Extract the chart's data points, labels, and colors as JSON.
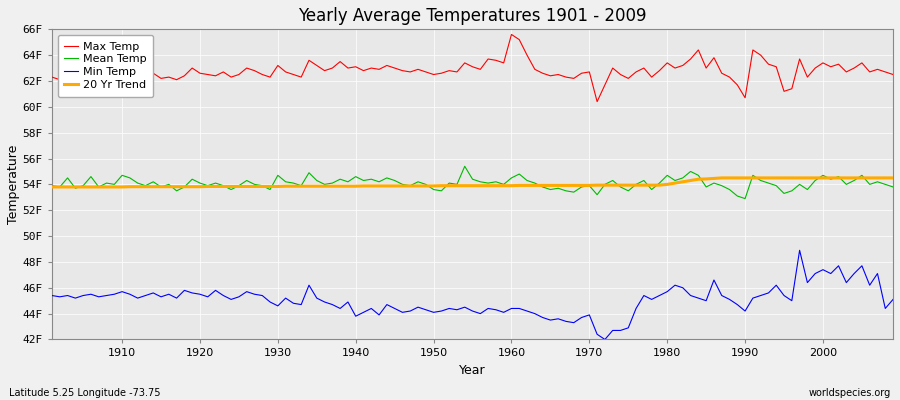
{
  "title": "Yearly Average Temperatures 1901 - 2009",
  "xlabel": "Year",
  "ylabel": "Temperature",
  "latitude_label": "Latitude 5.25 Longitude -73.75",
  "source_label": "worldspecies.org",
  "years": [
    1901,
    1902,
    1903,
    1904,
    1905,
    1906,
    1907,
    1908,
    1909,
    1910,
    1911,
    1912,
    1913,
    1914,
    1915,
    1916,
    1917,
    1918,
    1919,
    1920,
    1921,
    1922,
    1923,
    1924,
    1925,
    1926,
    1927,
    1928,
    1929,
    1930,
    1931,
    1932,
    1933,
    1934,
    1935,
    1936,
    1937,
    1938,
    1939,
    1940,
    1941,
    1942,
    1943,
    1944,
    1945,
    1946,
    1947,
    1948,
    1949,
    1950,
    1951,
    1952,
    1953,
    1954,
    1955,
    1956,
    1957,
    1958,
    1959,
    1960,
    1961,
    1962,
    1963,
    1964,
    1965,
    1966,
    1967,
    1968,
    1969,
    1970,
    1971,
    1972,
    1973,
    1974,
    1975,
    1976,
    1977,
    1978,
    1979,
    1980,
    1981,
    1982,
    1983,
    1984,
    1985,
    1986,
    1987,
    1988,
    1989,
    1990,
    1991,
    1992,
    1993,
    1994,
    1995,
    1996,
    1997,
    1998,
    1999,
    2000,
    2001,
    2002,
    2003,
    2004,
    2005,
    2006,
    2007,
    2008,
    2009
  ],
  "max_temp": [
    62.3,
    62.1,
    63.5,
    62.0,
    62.3,
    62.8,
    62.2,
    62.5,
    62.4,
    63.6,
    62.8,
    62.5,
    62.3,
    62.6,
    62.2,
    62.3,
    62.1,
    62.4,
    63.0,
    62.6,
    62.5,
    62.4,
    62.7,
    62.3,
    62.5,
    63.0,
    62.8,
    62.5,
    62.3,
    63.2,
    62.7,
    62.5,
    62.3,
    63.6,
    63.2,
    62.8,
    63.0,
    63.5,
    63.0,
    63.1,
    62.8,
    63.0,
    62.9,
    63.2,
    63.0,
    62.8,
    62.7,
    62.9,
    62.7,
    62.5,
    62.6,
    62.8,
    62.7,
    63.4,
    63.1,
    62.9,
    63.7,
    63.6,
    63.4,
    65.6,
    65.2,
    64.0,
    62.9,
    62.6,
    62.4,
    62.5,
    62.3,
    62.2,
    62.6,
    62.7,
    60.4,
    61.7,
    63.0,
    62.5,
    62.2,
    62.7,
    63.0,
    62.3,
    62.8,
    63.4,
    63.0,
    63.2,
    63.7,
    64.4,
    63.0,
    63.8,
    62.6,
    62.3,
    61.7,
    60.7,
    64.4,
    64.0,
    63.3,
    63.1,
    61.2,
    61.4,
    63.7,
    62.3,
    63.0,
    63.4,
    63.1,
    63.3,
    62.7,
    63.0,
    63.4,
    62.7,
    62.9,
    62.7,
    62.5
  ],
  "mean_temp": [
    53.9,
    53.8,
    54.5,
    53.7,
    53.9,
    54.6,
    53.8,
    54.1,
    54.0,
    54.7,
    54.5,
    54.1,
    53.9,
    54.2,
    53.8,
    54.0,
    53.5,
    53.8,
    54.4,
    54.1,
    53.9,
    54.1,
    53.9,
    53.6,
    53.9,
    54.3,
    54.0,
    53.9,
    53.6,
    54.7,
    54.2,
    54.1,
    53.9,
    54.9,
    54.3,
    54.0,
    54.1,
    54.4,
    54.2,
    54.6,
    54.3,
    54.4,
    54.2,
    54.5,
    54.3,
    54.0,
    53.9,
    54.2,
    54.0,
    53.6,
    53.5,
    54.1,
    54.0,
    55.4,
    54.4,
    54.2,
    54.1,
    54.2,
    54.0,
    54.5,
    54.8,
    54.3,
    54.1,
    53.8,
    53.6,
    53.7,
    53.5,
    53.4,
    53.8,
    53.9,
    53.2,
    54.0,
    54.3,
    53.8,
    53.5,
    54.0,
    54.3,
    53.6,
    54.1,
    54.7,
    54.3,
    54.5,
    55.0,
    54.7,
    53.8,
    54.1,
    53.9,
    53.6,
    53.1,
    52.9,
    54.7,
    54.3,
    54.1,
    53.9,
    53.3,
    53.5,
    54.0,
    53.6,
    54.3,
    54.7,
    54.4,
    54.6,
    54.0,
    54.3,
    54.7,
    54.0,
    54.2,
    54.0,
    53.8
  ],
  "min_temp": [
    45.4,
    45.3,
    45.4,
    45.2,
    45.4,
    45.5,
    45.3,
    45.4,
    45.5,
    45.7,
    45.5,
    45.2,
    45.4,
    45.6,
    45.3,
    45.5,
    45.2,
    45.8,
    45.6,
    45.5,
    45.3,
    45.8,
    45.4,
    45.1,
    45.3,
    45.7,
    45.5,
    45.4,
    44.9,
    44.6,
    45.2,
    44.8,
    44.7,
    46.2,
    45.2,
    44.9,
    44.7,
    44.4,
    44.9,
    43.8,
    44.1,
    44.4,
    43.9,
    44.7,
    44.4,
    44.1,
    44.2,
    44.5,
    44.3,
    44.1,
    44.2,
    44.4,
    44.3,
    44.5,
    44.2,
    44.0,
    44.4,
    44.3,
    44.1,
    44.4,
    44.4,
    44.2,
    44.0,
    43.7,
    43.5,
    43.6,
    43.4,
    43.3,
    43.7,
    43.9,
    42.4,
    42.0,
    42.7,
    42.7,
    42.9,
    44.4,
    45.4,
    45.1,
    45.4,
    45.7,
    46.2,
    46.0,
    45.4,
    45.2,
    45.0,
    46.6,
    45.4,
    45.1,
    44.7,
    44.2,
    45.2,
    45.4,
    45.6,
    46.2,
    45.4,
    45.0,
    48.9,
    46.4,
    47.1,
    47.4,
    47.1,
    47.7,
    46.4,
    47.1,
    47.7,
    46.2,
    47.1,
    44.4,
    45.1
  ],
  "trend_temp": [
    53.8,
    53.8,
    53.8,
    53.8,
    53.8,
    53.8,
    53.8,
    53.8,
    53.8,
    53.8,
    53.82,
    53.82,
    53.82,
    53.82,
    53.82,
    53.82,
    53.82,
    53.82,
    53.82,
    53.82,
    53.84,
    53.84,
    53.84,
    53.84,
    53.84,
    53.84,
    53.84,
    53.84,
    53.84,
    53.84,
    53.86,
    53.86,
    53.86,
    53.86,
    53.86,
    53.86,
    53.86,
    53.86,
    53.86,
    53.86,
    53.88,
    53.88,
    53.88,
    53.88,
    53.88,
    53.88,
    53.88,
    53.88,
    53.88,
    53.88,
    53.9,
    53.9,
    53.9,
    53.9,
    53.9,
    53.9,
    53.9,
    53.9,
    53.9,
    53.9,
    53.92,
    53.92,
    53.92,
    53.92,
    53.92,
    53.92,
    53.92,
    53.92,
    53.92,
    53.92,
    53.94,
    53.94,
    53.94,
    53.94,
    53.94,
    53.94,
    53.94,
    53.94,
    53.94,
    54.0,
    54.1,
    54.2,
    54.3,
    54.4,
    54.42,
    54.46,
    54.5,
    54.5,
    54.5,
    54.5,
    54.5,
    54.5,
    54.5,
    54.5,
    54.5,
    54.5,
    54.5,
    54.5,
    54.5,
    54.5,
    54.5,
    54.5,
    54.5,
    54.5,
    54.5,
    54.5,
    54.5,
    54.5,
    54.5
  ],
  "max_color": "#ff0000",
  "mean_color": "#00bb00",
  "min_color": "#0000ff",
  "trend_color": "#ffaa00",
  "bg_color": "#f0f0f0",
  "plot_bg_color": "#e8e8e8",
  "grid_color": "#ffffff",
  "ylim_min": 42,
  "ylim_max": 66,
  "ytick_step": 2,
  "xtick_start": 1910,
  "xtick_end": 2000,
  "xtick_step": 10
}
